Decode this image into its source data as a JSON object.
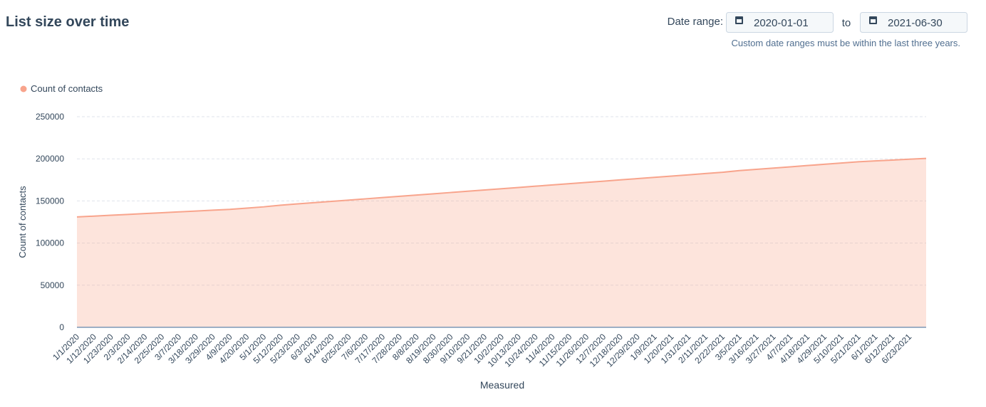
{
  "header": {
    "title": "List size over time",
    "date_range_label": "Date range:",
    "start_date": "2020-01-01",
    "to_label": "to",
    "end_date": "2021-06-30",
    "note": "Custom date ranges must be within the last three years."
  },
  "chart_data": {
    "type": "area",
    "x_label": "Measured",
    "y_label": "Count of contacts",
    "categories": [
      "1/1/2020",
      "1/12/2020",
      "1/23/2020",
      "2/3/2020",
      "2/14/2020",
      "2/25/2020",
      "3/7/2020",
      "3/18/2020",
      "3/29/2020",
      "4/9/2020",
      "4/20/2020",
      "5/1/2020",
      "5/12/2020",
      "5/23/2020",
      "6/3/2020",
      "6/14/2020",
      "6/25/2020",
      "7/6/2020",
      "7/17/2020",
      "7/28/2020",
      "8/8/2020",
      "8/19/2020",
      "8/30/2020",
      "9/10/2020",
      "9/21/2020",
      "10/2/2020",
      "10/13/2020",
      "10/24/2020",
      "11/4/2020",
      "11/15/2020",
      "11/26/2020",
      "12/7/2020",
      "12/18/2020",
      "12/29/2020",
      "1/9/2021",
      "1/20/2021",
      "1/31/2021",
      "2/11/2021",
      "2/22/2021",
      "3/5/2021",
      "3/16/2021",
      "3/27/2021",
      "4/7/2021",
      "4/18/2021",
      "4/29/2021",
      "5/10/2021",
      "5/21/2021",
      "6/1/2021",
      "6/12/2021",
      "6/23/2021",
      null
    ],
    "series": [
      {
        "name": "Count of contacts",
        "color": "#f8a48c",
        "values": [
          131000,
          132000,
          133000,
          134000,
          135000,
          136000,
          137000,
          138000,
          139000,
          140000,
          141500,
          143000,
          145000,
          146500,
          148000,
          149500,
          151000,
          152500,
          154000,
          155500,
          157000,
          158500,
          160000,
          161500,
          163000,
          164500,
          166000,
          167500,
          169000,
          170500,
          172000,
          173500,
          175000,
          176500,
          178000,
          179500,
          181000,
          182500,
          184000,
          186000,
          187500,
          189000,
          190500,
          192000,
          193500,
          195000,
          196500,
          197500,
          198500,
          199500,
          200500
        ]
      }
    ],
    "ylim": [
      0,
      250000
    ],
    "yticks": [
      0,
      50000,
      100000,
      150000,
      200000,
      250000
    ],
    "grid": true,
    "legend": "top-left"
  }
}
